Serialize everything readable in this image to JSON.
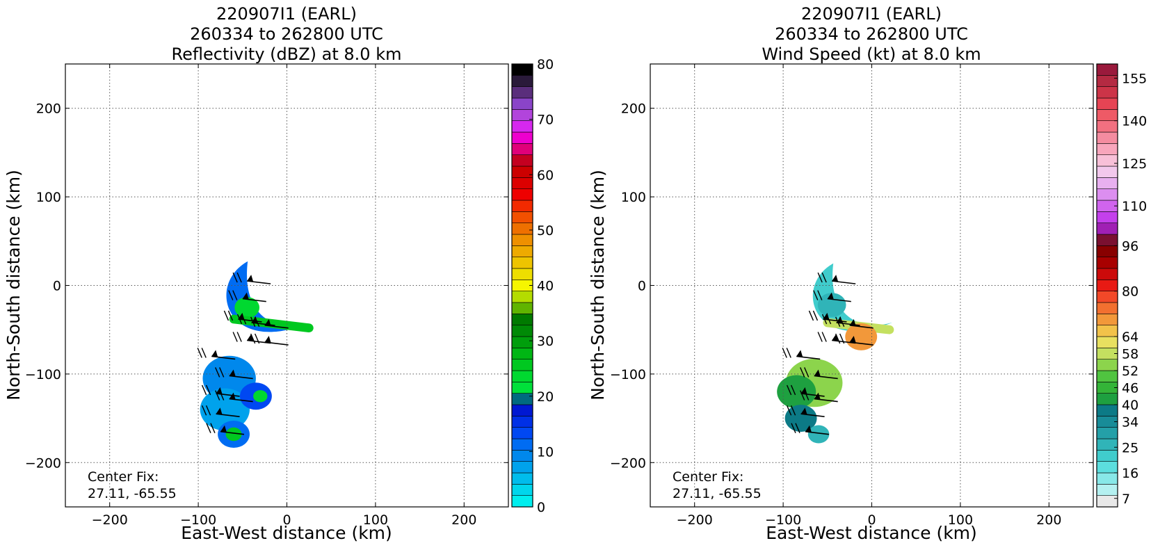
{
  "panels": [
    {
      "title_lines": [
        "220907I1 (EARL)",
        "260334 to 262800 UTC",
        "Reflectivity (dBZ) at 8.0 km"
      ],
      "xlabel": "East-West distance (km)",
      "ylabel": "North-South distance (km)",
      "note_lines": [
        "Center Fix:",
        "27.11, -65.55"
      ],
      "colorbar_labels": [
        "0",
        "10",
        "20",
        "30",
        "40",
        "50",
        "60",
        "70",
        "80"
      ],
      "colorbar_colors": [
        "#00eeee",
        "#00d6ec",
        "#00bcec",
        "#00a2ec",
        "#0088ec",
        "#006cf2",
        "#0048f2",
        "#0030e6",
        "#0018d2",
        "#006a80",
        "#00e03a",
        "#00d830",
        "#00c820",
        "#00b614",
        "#009e0c",
        "#008a06",
        "#007a00",
        "#60b400",
        "#b4dc00",
        "#f6f600",
        "#eede00",
        "#eec400",
        "#eeaa00",
        "#ee9000",
        "#ee7000",
        "#f25000",
        "#f22a00",
        "#ee0000",
        "#dc0000",
        "#cc0000",
        "#c40020",
        "#e0007a",
        "#ee00ce",
        "#d628ee",
        "#b244dc",
        "#8a44c8",
        "#5a2e7c",
        "#2a1a3a",
        "#000000"
      ]
    },
    {
      "title_lines": [
        "220907I1 (EARL)",
        "260334 to 262800 UTC",
        "Wind Speed (kt) at 8.0 km"
      ],
      "xlabel": "East-West distance (km)",
      "ylabel": "North-South distance (km)",
      "note_lines": [
        "Center Fix:",
        "27.11, -65.55"
      ],
      "colorbar_labels": [
        "7",
        "16",
        "25",
        "34",
        "40",
        "46",
        "52",
        "58",
        "64",
        "80",
        "96",
        "110",
        "125",
        "140",
        "155"
      ],
      "colorbar_colors": [
        "#e8e8e8",
        "#b4f0f0",
        "#88e8e8",
        "#5cdede",
        "#40cccc",
        "#30b4b8",
        "#24a0a8",
        "#188c98",
        "#0c7a86",
        "#1ea040",
        "#34b438",
        "#50c440",
        "#8cd44c",
        "#c4e060",
        "#e8e060",
        "#f2c24a",
        "#f2983a",
        "#f27030",
        "#f24828",
        "#e81a14",
        "#cc0a0a",
        "#a80000",
        "#880000",
        "#7a1030",
        "#a020b4",
        "#c440ec",
        "#d064ee",
        "#dc8ef0",
        "#e8b0f0",
        "#f2c8ec",
        "#f8c0d8",
        "#f8a6bc",
        "#f48ca0",
        "#f27080",
        "#ee5a66",
        "#e64454",
        "#cc3448",
        "#b42a42",
        "#9a1a3c"
      ]
    }
  ],
  "chart_data": [
    {
      "type": "heatmap",
      "title": "220907I1 (EARL) 260334 to 262800 UTC Reflectivity (dBZ) at 8.0 km",
      "xlabel": "East-West distance (km)",
      "ylabel": "North-South distance (km)",
      "xlim": [
        -250,
        250
      ],
      "ylim": [
        -250,
        250
      ],
      "xticks": [
        -200,
        -100,
        0,
        100,
        200
      ],
      "yticks": [
        -200,
        -100,
        0,
        100,
        200
      ],
      "grid": true,
      "colorbar": {
        "label": "dBZ",
        "range": [
          0,
          80
        ],
        "ticks": [
          0,
          10,
          20,
          30,
          40,
          50,
          60,
          70,
          80
        ]
      },
      "annotation": "Center Fix: 27.11, -65.55",
      "regions": [
        {
          "shape": "crescent",
          "center": [
            -25,
            -28
          ],
          "radius": 48,
          "level": 12
        },
        {
          "shape": "blob",
          "center": [
            -45,
            -25
          ],
          "radius": 14,
          "level": 24
        },
        {
          "shape": "band",
          "from": [
            -60,
            -38
          ],
          "to": [
            25,
            -48
          ],
          "level": 26
        },
        {
          "shape": "blob",
          "center": [
            -65,
            -105
          ],
          "radius": 30,
          "level": 10
        },
        {
          "shape": "blob",
          "center": [
            -70,
            -140
          ],
          "radius": 28,
          "level": 8
        },
        {
          "shape": "blob",
          "center": [
            -35,
            -125
          ],
          "radius": 18,
          "level": 13
        },
        {
          "shape": "blob",
          "center": [
            -30,
            -125
          ],
          "radius": 8,
          "level": 24
        },
        {
          "shape": "blob",
          "center": [
            -60,
            -168
          ],
          "radius": 18,
          "level": 11
        },
        {
          "shape": "blob",
          "center": [
            -60,
            -168
          ],
          "radius": 9,
          "level": 25
        }
      ]
    },
    {
      "type": "heatmap",
      "title": "220907I1 (EARL) 260334 to 262800 UTC Wind Speed (kt) at 8.0 km",
      "xlabel": "East-West distance (km)",
      "ylabel": "North-South distance (km)",
      "xlim": [
        -250,
        250
      ],
      "ylim": [
        -250,
        250
      ],
      "xticks": [
        -200,
        -100,
        0,
        100,
        200
      ],
      "yticks": [
        -200,
        -100,
        0,
        100,
        200
      ],
      "grid": true,
      "colorbar": {
        "label": "kt",
        "range": [
          4,
          160
        ],
        "ticks": [
          7,
          16,
          25,
          34,
          40,
          46,
          52,
          58,
          64,
          80,
          96,
          110,
          125,
          140,
          155
        ]
      },
      "annotation": "Center Fix: 27.11, -65.55",
      "regions": [
        {
          "shape": "crescent",
          "center": [
            -25,
            -28
          ],
          "radius": 46,
          "level": 20
        },
        {
          "shape": "blob",
          "center": [
            -45,
            -22
          ],
          "radius": 16,
          "level": 25
        },
        {
          "shape": "band",
          "from": [
            -50,
            -42
          ],
          "to": [
            20,
            -50
          ],
          "level": 58
        },
        {
          "shape": "blob",
          "center": [
            -12,
            -58
          ],
          "radius": 18,
          "level": 70
        },
        {
          "shape": "blob",
          "center": [
            -65,
            -110
          ],
          "radius": 32,
          "level": 52
        },
        {
          "shape": "blob",
          "center": [
            -85,
            -120
          ],
          "radius": 22,
          "level": 42
        },
        {
          "shape": "blob",
          "center": [
            -80,
            -150
          ],
          "radius": 18,
          "level": 36
        },
        {
          "shape": "blob",
          "center": [
            -60,
            -168
          ],
          "radius": 12,
          "level": 26
        }
      ]
    }
  ]
}
